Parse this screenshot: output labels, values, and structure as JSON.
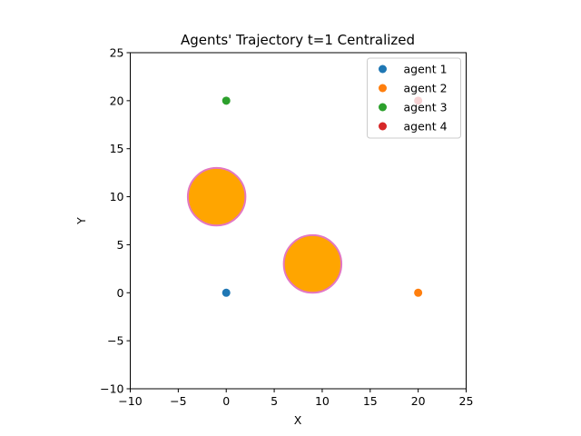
{
  "chart_data": {
    "type": "scatter",
    "title": "Agents' Trajectory t=1 Centralized",
    "xlabel": "X",
    "ylabel": "Y",
    "xlim": [
      -10,
      25
    ],
    "ylim": [
      -10,
      25
    ],
    "xticks": [
      -10,
      -5,
      0,
      5,
      10,
      15,
      20,
      25
    ],
    "yticks": [
      -10,
      -5,
      0,
      5,
      10,
      15,
      20,
      25
    ],
    "grid": false,
    "legend_position": "top-right",
    "series": [
      {
        "name": "agent 1",
        "color": "#1f77b4",
        "points": [
          [
            0,
            0
          ]
        ]
      },
      {
        "name": "agent 2",
        "color": "#ff7f0e",
        "points": [
          [
            20,
            0
          ]
        ]
      },
      {
        "name": "agent 3",
        "color": "#2ca02c",
        "points": [
          [
            0,
            20
          ]
        ]
      },
      {
        "name": "agent 4",
        "color": "#d62728",
        "points": [
          [
            20,
            20
          ]
        ]
      }
    ],
    "obstacles": [
      {
        "center": [
          -1,
          10
        ],
        "radius": 3,
        "fill": "#ffa500",
        "edge": "#e377c2"
      },
      {
        "center": [
          9,
          3
        ],
        "radius": 3,
        "fill": "#ffa500",
        "edge": "#e377c2"
      }
    ]
  }
}
